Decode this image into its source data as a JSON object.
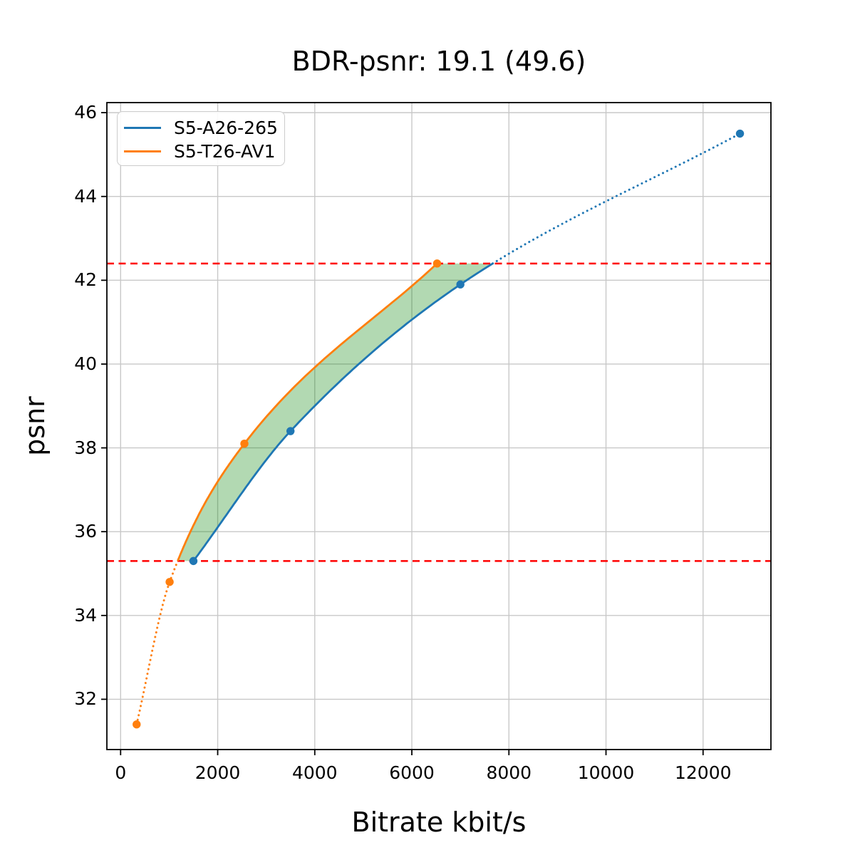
{
  "chart_data": {
    "type": "line",
    "title": "BDR-psnr: 19.1 (49.6)",
    "xlabel": "Bitrate kbit/s",
    "ylabel": "psnr",
    "xlim": [
      -283,
      13398
    ],
    "ylim": [
      30.8,
      46.24
    ],
    "x_ticks": [
      0,
      2000,
      4000,
      6000,
      8000,
      10000,
      12000
    ],
    "y_ticks": [
      32,
      34,
      36,
      38,
      40,
      42,
      44,
      46
    ],
    "grid": true,
    "grid_color": "#c8c8c8",
    "legend_position": "upper left",
    "series": [
      {
        "name": "S5-A26-265",
        "color": "#1f77b4",
        "marker": "circle",
        "points": [
          [
            1500,
            35.3
          ],
          [
            3500,
            38.4
          ],
          [
            7000,
            41.9
          ],
          [
            12760,
            45.5
          ]
        ],
        "solid_psnr_range": [
          35.3,
          42.4
        ],
        "style_outside_range": "dotted"
      },
      {
        "name": "S5-T26-AV1",
        "color": "#ff7f0e",
        "marker": "circle",
        "points": [
          [
            330,
            31.4
          ],
          [
            1010,
            34.8
          ],
          [
            2550,
            38.1
          ],
          [
            6520,
            42.4
          ]
        ],
        "solid_psnr_range": [
          35.3,
          42.4
        ],
        "style_outside_range": "dotted"
      }
    ],
    "hlines": [
      {
        "y": 35.3,
        "color": "#ff0000",
        "style": "dashed"
      },
      {
        "y": 42.4,
        "color": "#ff0000",
        "style": "dashed"
      }
    ],
    "overlap_region": {
      "between": [
        "S5-T26-AV1",
        "S5-A26-265"
      ],
      "psnr_range": [
        35.3,
        42.4
      ],
      "fill_color": "#008000",
      "alpha": 0.3
    }
  }
}
